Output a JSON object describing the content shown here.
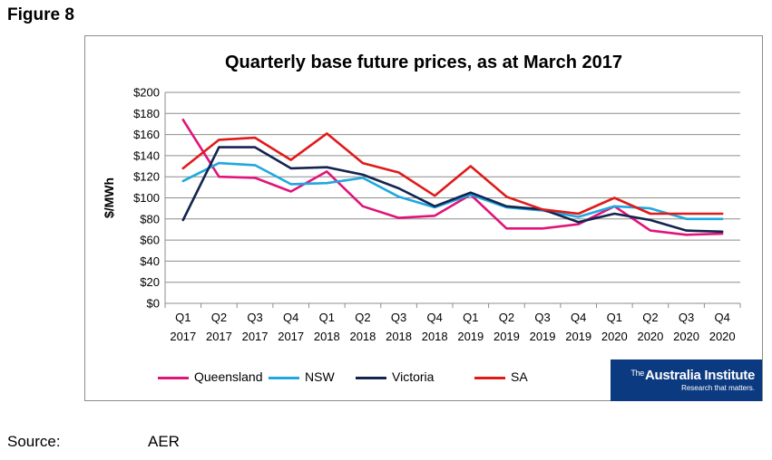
{
  "figure_label": "Figure 8",
  "source": {
    "label": "Source:",
    "value": "AER"
  },
  "logo": {
    "prefix": "The",
    "name": "Australia Institute",
    "tagline": "Research that matters."
  },
  "chart_data": {
    "type": "line",
    "title": "Quarterly base future prices, as at March 2017",
    "xlabel": "",
    "ylabel": "$/MWh",
    "ylim": [
      0,
      200
    ],
    "yticks": [
      0,
      20,
      40,
      60,
      80,
      100,
      120,
      140,
      160,
      180,
      200
    ],
    "ytick_labels": [
      "$0",
      "$20",
      "$40",
      "$60",
      "$80",
      "$100",
      "$120",
      "$140",
      "$160",
      "$180",
      "$200"
    ],
    "grid": true,
    "legend_position": "bottom",
    "categories": [
      [
        "Q1",
        "2017"
      ],
      [
        "Q2",
        "2017"
      ],
      [
        "Q3",
        "2017"
      ],
      [
        "Q4",
        "2017"
      ],
      [
        "Q1",
        "2018"
      ],
      [
        "Q2",
        "2018"
      ],
      [
        "Q3",
        "2018"
      ],
      [
        "Q4",
        "2018"
      ],
      [
        "Q1",
        "2019"
      ],
      [
        "Q2",
        "2019"
      ],
      [
        "Q3",
        "2019"
      ],
      [
        "Q4",
        "2019"
      ],
      [
        "Q1",
        "2020"
      ],
      [
        "Q2",
        "2020"
      ],
      [
        "Q3",
        "2020"
      ],
      [
        "Q4",
        "2020"
      ]
    ],
    "series": [
      {
        "name": "Queensland",
        "color": "#e0147a",
        "values": [
          174,
          120,
          119,
          106,
          125,
          92,
          81,
          83,
          103,
          71,
          71,
          75,
          92,
          69,
          65,
          66
        ]
      },
      {
        "name": "NSW",
        "color": "#1ea8e0",
        "values": [
          116,
          133,
          131,
          113,
          114,
          119,
          101,
          91,
          103,
          91,
          88,
          82,
          92,
          90,
          80,
          80
        ]
      },
      {
        "name": "Victoria",
        "color": "#13244f",
        "values": [
          79,
          148,
          148,
          128,
          129,
          122,
          109,
          92,
          105,
          92,
          89,
          77,
          85,
          79,
          69,
          68
        ]
      },
      {
        "name": "SA",
        "color": "#e01a1a",
        "values": [
          128,
          155,
          157,
          136,
          161,
          133,
          124,
          102,
          130,
          101,
          89,
          85,
          100,
          85,
          85,
          85
        ]
      }
    ]
  }
}
